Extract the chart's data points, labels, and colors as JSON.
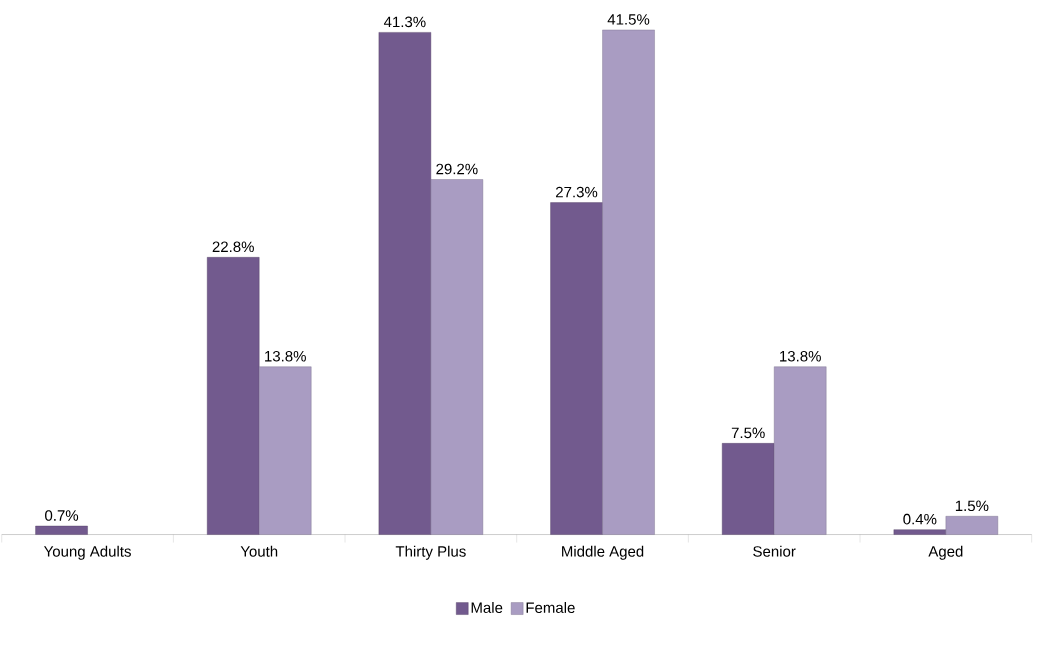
{
  "chart_data": {
    "type": "bar",
    "categories": [
      "Young Adults",
      "Youth",
      "Thirty Plus",
      "Middle Aged",
      "Senior",
      "Aged"
    ],
    "series": [
      {
        "name": "Male",
        "color": "#725a8e",
        "values": [
          0.7,
          22.8,
          41.3,
          27.3,
          7.5,
          0.4
        ],
        "value_labels": [
          "0.7%",
          "22.8%",
          "41.3%",
          "27.3%",
          "7.5%",
          "0.4%"
        ]
      },
      {
        "name": "Female",
        "color": "#a99cc2",
        "values": [
          null,
          13.8,
          29.2,
          41.5,
          13.8,
          1.5
        ],
        "value_labels": [
          null,
          "13.8%",
          "29.2%",
          "41.5%",
          "13.8%",
          "1.5%"
        ]
      }
    ],
    "tick_labels": "x",
    "grid": false,
    "legend": "bottom"
  }
}
